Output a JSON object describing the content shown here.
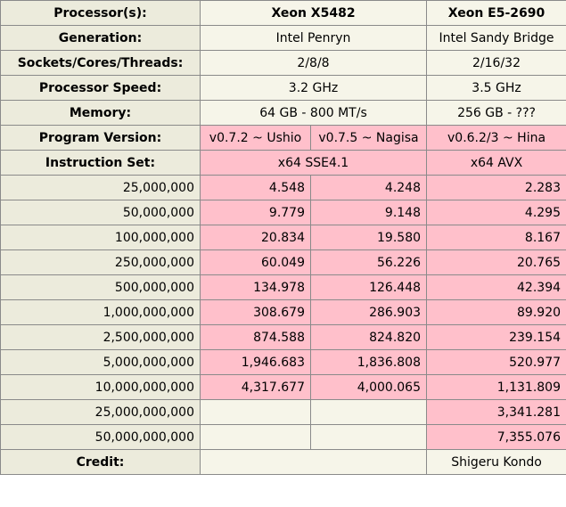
{
  "header": {
    "label": "Processor(s):",
    "cpu_a": "Xeon X5482",
    "cpu_b": "Xeon E5-2690"
  },
  "info_rows": [
    {
      "label": "Generation:",
      "a": "Intel Penryn",
      "b": "Intel Sandy Bridge"
    },
    {
      "label": "Sockets/Cores/Threads:",
      "a": "2/8/8",
      "b": "2/16/32"
    },
    {
      "label": "Processor Speed:",
      "a": "3.2 GHz",
      "b": "3.5 GHz"
    },
    {
      "label": "Memory:",
      "a": "64 GB - 800 MT/s",
      "b": "256 GB - ???"
    }
  ],
  "program_version": {
    "label": "Program Version:",
    "a1": "v0.7.2 ~ Ushio",
    "a2": "v0.7.5 ~ Nagisa",
    "b": "v0.6.2/3 ~ Hina"
  },
  "instruction_set": {
    "label": "Instruction Set:",
    "a": "x64 SSE4.1",
    "b": "x64 AVX"
  },
  "results": [
    {
      "digits": "25,000,000",
      "a1": "4.548",
      "a2": "4.248",
      "b": "2.283"
    },
    {
      "digits": "50,000,000",
      "a1": "9.779",
      "a2": "9.148",
      "b": "4.295"
    },
    {
      "digits": "100,000,000",
      "a1": "20.834",
      "a2": "19.580",
      "b": "8.167"
    },
    {
      "digits": "250,000,000",
      "a1": "60.049",
      "a2": "56.226",
      "b": "20.765"
    },
    {
      "digits": "500,000,000",
      "a1": "134.978",
      "a2": "126.448",
      "b": "42.394"
    },
    {
      "digits": "1,000,000,000",
      "a1": "308.679",
      "a2": "286.903",
      "b": "89.920"
    },
    {
      "digits": "2,500,000,000",
      "a1": "874.588",
      "a2": "824.820",
      "b": "239.154"
    },
    {
      "digits": "5,000,000,000",
      "a1": "1,946.683",
      "a2": "1,836.808",
      "b": "520.977"
    },
    {
      "digits": "10,000,000,000",
      "a1": "4,317.677",
      "a2": "4,000.065",
      "b": "1,131.809"
    },
    {
      "digits": "25,000,000,000",
      "a1": "",
      "a2": "",
      "b": "3,341.281"
    },
    {
      "digits": "50,000,000,000",
      "a1": "",
      "a2": "",
      "b": "7,355.076"
    }
  ],
  "credit": {
    "label": "Credit:",
    "a": "",
    "b": "Shigeru Kondo"
  },
  "colors": {
    "header_bg": "#ecebdc",
    "cell_bg": "#f6f5e9",
    "highlight": "#ffc0cb",
    "border": "#8a8a8a"
  }
}
